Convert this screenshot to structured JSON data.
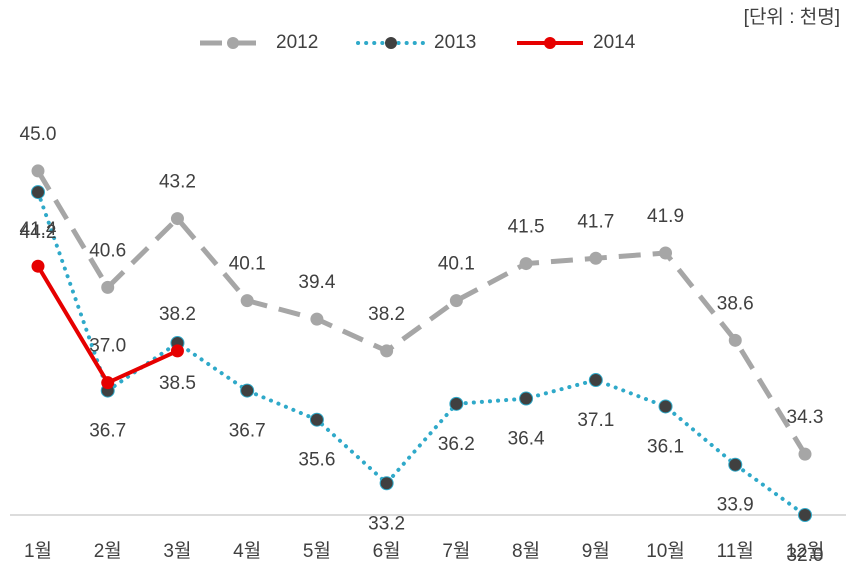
{
  "chart_data": {
    "type": "line",
    "unit_note": "[단위 : 천명]",
    "categories": [
      "1월",
      "2월",
      "3월",
      "4월",
      "5월",
      "6월",
      "7월",
      "8월",
      "9월",
      "10월",
      "11월",
      "12월"
    ],
    "ylim": [
      32,
      47
    ],
    "series": [
      {
        "name": "2012",
        "color": "#a6a6a6",
        "marker_color": "#a6a6a6",
        "line_style": "dashed",
        "label_position": "above",
        "values": [
          45.0,
          40.6,
          43.2,
          40.1,
          39.4,
          38.2,
          40.1,
          41.5,
          41.7,
          41.9,
          38.6,
          34.3
        ],
        "value_labels": [
          "45.0",
          "40.6",
          "43.2",
          "40.1",
          "39.4",
          "38.2",
          "40.1",
          "41.5",
          "41.7",
          "41.9",
          "38.6",
          "34.3"
        ]
      },
      {
        "name": "2013",
        "color": "#2fa9c9",
        "marker_color": "#404040",
        "line_style": "dotted",
        "label_position": "below",
        "values": [
          44.2,
          36.7,
          38.5,
          36.7,
          35.6,
          33.2,
          36.2,
          36.4,
          37.1,
          36.1,
          33.9,
          32.0
        ],
        "value_labels": [
          "44.2",
          "36.7",
          "38.5",
          "36.7",
          "35.6",
          "33.2",
          "36.2",
          "36.4",
          "37.1",
          "36.1",
          "33.9",
          "32.0"
        ]
      },
      {
        "name": "2014",
        "color": "#e60000",
        "marker_color": "#e60000",
        "line_style": "solid",
        "label_position": "above",
        "values": [
          41.4,
          37.0,
          38.2,
          null,
          null,
          null,
          null,
          null,
          null,
          null,
          null,
          null
        ],
        "value_labels": [
          "41.4",
          "37.0",
          "38.2",
          null,
          null,
          null,
          null,
          null,
          null,
          null,
          null,
          null
        ]
      }
    ]
  }
}
